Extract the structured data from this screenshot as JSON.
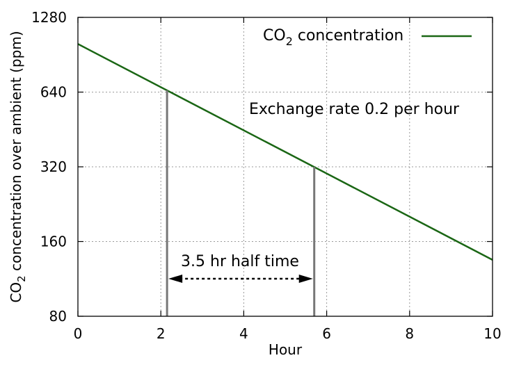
{
  "chart_data": {
    "type": "line",
    "xlabel": "Hour",
    "ylabel_prefix": "CO",
    "ylabel_sub": "2",
    "ylabel_suffix": " concentration over ambient (ppm)",
    "y_scale": "log2",
    "xlim": [
      0,
      10
    ],
    "ylim": [
      80,
      1280
    ],
    "x_ticks": [
      0,
      2,
      4,
      6,
      8,
      10
    ],
    "y_ticks": [
      80,
      160,
      320,
      640,
      1280
    ],
    "grid": true,
    "legend_position": "top-right",
    "series": [
      {
        "name_prefix": "CO",
        "name_sub": "2",
        "name_suffix": " concentration",
        "color": "#1a6614",
        "x": [
          0,
          10
        ],
        "y": [
          1000,
          135
        ]
      }
    ],
    "annotations": {
      "exchange_rate": "Exchange rate 0.2 per hour",
      "half_time": "3.5 hr half time",
      "half_time_markers_x": [
        2.15,
        5.7
      ]
    }
  }
}
